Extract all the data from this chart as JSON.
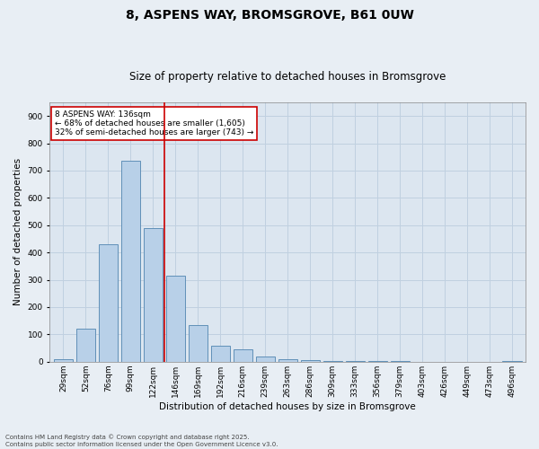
{
  "title1": "8, ASPENS WAY, BROMSGROVE, B61 0UW",
  "title2": "Size of property relative to detached houses in Bromsgrove",
  "xlabel": "Distribution of detached houses by size in Bromsgrove",
  "ylabel": "Number of detached properties",
  "categories": [
    "29sqm",
    "52sqm",
    "76sqm",
    "99sqm",
    "122sqm",
    "146sqm",
    "169sqm",
    "192sqm",
    "216sqm",
    "239sqm",
    "263sqm",
    "286sqm",
    "309sqm",
    "333sqm",
    "356sqm",
    "379sqm",
    "403sqm",
    "426sqm",
    "449sqm",
    "473sqm",
    "496sqm"
  ],
  "values": [
    10,
    120,
    430,
    735,
    490,
    315,
    135,
    60,
    45,
    20,
    10,
    5,
    2,
    2,
    1,
    1,
    0,
    0,
    0,
    0,
    1
  ],
  "bar_color": "#b8d0e8",
  "bar_edge_color": "#6090b8",
  "bar_width": 0.85,
  "vline_x_index": 4.5,
  "vline_color": "#cc0000",
  "annotation_line1": "8 ASPENS WAY: 136sqm",
  "annotation_line2": "← 68% of detached houses are smaller (1,605)",
  "annotation_line3": "32% of semi-detached houses are larger (743) →",
  "annotation_box_color": "#cc0000",
  "ylim": [
    0,
    950
  ],
  "yticks": [
    0,
    100,
    200,
    300,
    400,
    500,
    600,
    700,
    800,
    900
  ],
  "grid_color": "#c0d0e0",
  "bg_color": "#e8eef4",
  "plot_bg": "#dce6f0",
  "footer": "Contains HM Land Registry data © Crown copyright and database right 2025.\nContains public sector information licensed under the Open Government Licence v3.0.",
  "title1_fontsize": 10,
  "title2_fontsize": 8.5,
  "tick_fontsize": 6.5,
  "label_fontsize": 7.5,
  "annot_fontsize": 6.5,
  "footer_fontsize": 5
}
